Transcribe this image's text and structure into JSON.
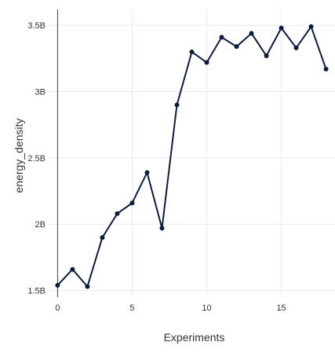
{
  "chart_data": {
    "type": "line",
    "xlabel": "Experiments",
    "ylabel": "energy_density",
    "xlim": [
      -0.6,
      18.6
    ],
    "ylim": [
      1.45,
      3.62
    ],
    "grid": true,
    "legend": "none",
    "x_ticks": [
      {
        "value": 0,
        "label": "0"
      },
      {
        "value": 5,
        "label": "5"
      },
      {
        "value": 10,
        "label": "10"
      },
      {
        "value": 15,
        "label": "15"
      }
    ],
    "y_ticks": [
      {
        "value": 1.5,
        "label": "1.5B"
      },
      {
        "value": 2.0,
        "label": "2B"
      },
      {
        "value": 2.5,
        "label": "2.5B"
      },
      {
        "value": 3.0,
        "label": "3B"
      },
      {
        "value": 3.5,
        "label": "3.5B"
      }
    ],
    "series": [
      {
        "color": "#0d1b3e",
        "x": [
          0,
          1,
          2,
          3,
          4,
          5,
          6,
          7,
          8,
          9,
          10,
          11,
          12,
          13,
          14,
          15,
          16,
          17,
          18
        ],
        "y": [
          1.54,
          1.66,
          1.53,
          1.9,
          2.08,
          2.16,
          2.39,
          1.97,
          2.9,
          3.3,
          3.22,
          3.41,
          3.34,
          3.44,
          3.27,
          3.48,
          3.33,
          3.49,
          3.17
        ]
      }
    ]
  }
}
